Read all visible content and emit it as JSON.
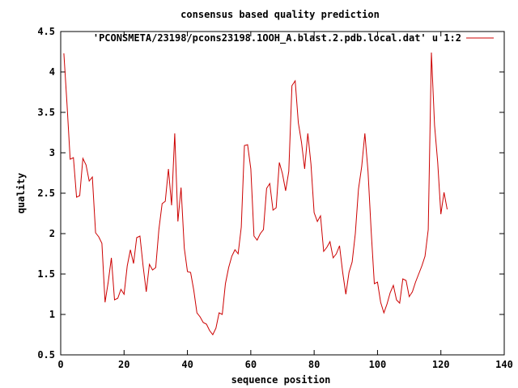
{
  "chart_data": {
    "type": "line",
    "title": "consensus based quality prediction",
    "xlabel": "sequence position",
    "ylabel": "quality",
    "xlim": [
      0,
      140
    ],
    "ylim": [
      0.5,
      4.5
    ],
    "xticks": [
      0,
      20,
      40,
      60,
      80,
      100,
      120,
      140
    ],
    "yticks": [
      0.5,
      1,
      1.5,
      2,
      2.5,
      3,
      3.5,
      4,
      4.5
    ],
    "xtick_labels": [
      "0",
      "20",
      "40",
      "60",
      "80",
      "100",
      "120",
      "140"
    ],
    "ytick_labels": [
      "0.5",
      "1",
      "1.5",
      "2",
      "2.5",
      "3",
      "3.5",
      "4",
      "4.5"
    ],
    "grid": false,
    "legend_position": "top-right",
    "series": [
      {
        "name": "'PCONSMETA/23198/pcons23198.1OOH_A.blast.2.pdb.local.dat' u 1:2",
        "color": "#cc0000",
        "x": [
          1,
          2,
          3,
          4,
          5,
          6,
          7,
          8,
          9,
          10,
          11,
          12,
          13,
          14,
          15,
          16,
          17,
          18,
          19,
          20,
          21,
          22,
          23,
          24,
          25,
          26,
          27,
          28,
          29,
          30,
          31,
          32,
          33,
          34,
          35,
          36,
          37,
          38,
          39,
          40,
          41,
          42,
          43,
          44,
          45,
          46,
          47,
          48,
          49,
          50,
          51,
          52,
          53,
          54,
          55,
          56,
          57,
          58,
          59,
          60,
          61,
          62,
          63,
          64,
          65,
          66,
          67,
          68,
          69,
          70,
          71,
          72,
          73,
          74,
          75,
          76,
          77,
          78,
          79,
          80,
          81,
          82,
          83,
          84,
          85,
          86,
          87,
          88,
          89,
          90,
          91,
          92,
          93,
          94,
          95,
          96,
          97,
          98,
          99,
          100,
          101,
          102,
          103,
          104,
          105,
          106,
          107,
          108,
          109,
          110,
          111,
          112,
          113,
          114,
          115,
          116,
          117,
          118,
          119,
          120,
          121,
          122
        ],
        "y": [
          4.23,
          3.6,
          2.92,
          2.94,
          2.45,
          2.47,
          2.93,
          2.85,
          2.65,
          2.7,
          2.01,
          1.96,
          1.88,
          1.15,
          1.4,
          1.7,
          1.18,
          1.2,
          1.31,
          1.25,
          1.6,
          1.8,
          1.63,
          1.95,
          1.97,
          1.6,
          1.28,
          1.62,
          1.55,
          1.58,
          2.05,
          2.37,
          2.4,
          2.8,
          2.35,
          3.24,
          2.15,
          2.57,
          1.82,
          1.53,
          1.52,
          1.3,
          1.02,
          0.97,
          0.9,
          0.88,
          0.8,
          0.75,
          0.83,
          1.02,
          1.0,
          1.38,
          1.58,
          1.72,
          1.8,
          1.75,
          2.08,
          3.09,
          3.1,
          2.8,
          1.97,
          1.92,
          2.0,
          2.05,
          2.56,
          2.62,
          2.29,
          2.32,
          2.88,
          2.74,
          2.53,
          2.77,
          3.83,
          3.89,
          3.37,
          3.13,
          2.8,
          3.24,
          2.86,
          2.26,
          2.15,
          2.22,
          1.78,
          1.83,
          1.9,
          1.7,
          1.75,
          1.85,
          1.52,
          1.25,
          1.52,
          1.65,
          2.0,
          2.55,
          2.83,
          3.24,
          2.77,
          2.03,
          1.38,
          1.4,
          1.15,
          1.02,
          1.13,
          1.27,
          1.36,
          1.18,
          1.14,
          1.44,
          1.42,
          1.22,
          1.28,
          1.4,
          1.5,
          1.6,
          1.72,
          2.05,
          4.24,
          3.34,
          2.88,
          2.24,
          2.51,
          2.3
        ]
      }
    ]
  }
}
